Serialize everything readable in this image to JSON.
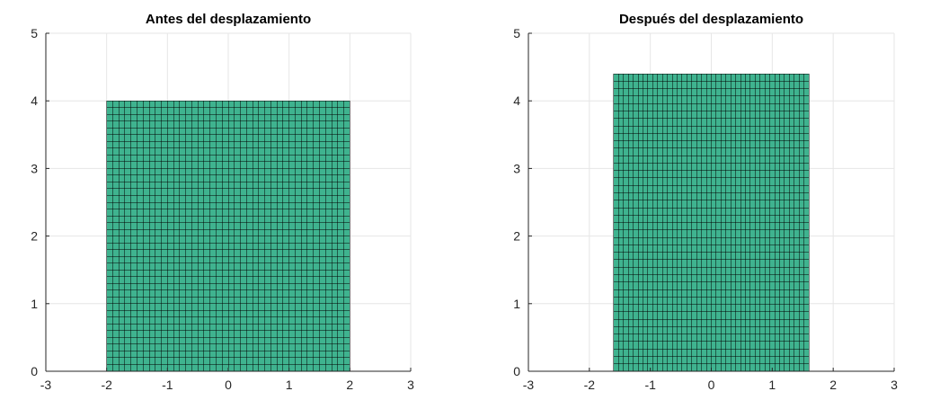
{
  "figure": {
    "background": "#ffffff",
    "axis_color": "#262626",
    "grid_color": "#e6e6e6"
  },
  "chart_data": [
    {
      "type": "mesh",
      "title": "Antes del desplazamiento",
      "xlabel": "",
      "ylabel": "",
      "xlim": [
        -3,
        3
      ],
      "ylim": [
        0,
        5
      ],
      "xticks": [
        -3,
        -2,
        -1,
        0,
        1,
        2,
        3
      ],
      "yticks": [
        0,
        1,
        2,
        3,
        4,
        5
      ],
      "xtick_labels": [
        "-3",
        "-2",
        "-1",
        "0",
        "1",
        "2",
        "3"
      ],
      "ytick_labels": [
        "0",
        "1",
        "2",
        "3",
        "4",
        "5"
      ],
      "grid": true,
      "box": false,
      "mesh": {
        "x_range": [
          -2,
          2
        ],
        "y_range": [
          0,
          4
        ],
        "nx": 40,
        "ny": 40,
        "face_color": "#3fb38f",
        "edge_color": "#000000"
      }
    },
    {
      "type": "mesh",
      "title": "Después del desplazamiento",
      "xlabel": "",
      "ylabel": "",
      "xlim": [
        -3,
        3
      ],
      "ylim": [
        0,
        5
      ],
      "xticks": [
        -3,
        -2,
        -1,
        0,
        1,
        2,
        3
      ],
      "yticks": [
        0,
        1,
        2,
        3,
        4,
        5
      ],
      "xtick_labels": [
        "-3",
        "-2",
        "-1",
        "0",
        "1",
        "2",
        "3"
      ],
      "ytick_labels": [
        "0",
        "1",
        "2",
        "3",
        "4",
        "5"
      ],
      "grid": true,
      "box": false,
      "mesh": {
        "x_range": [
          -1.6,
          1.6
        ],
        "y_range": [
          0,
          4.4
        ],
        "nx": 40,
        "ny": 40,
        "face_color": "#3fb38f",
        "edge_color": "#000000"
      }
    }
  ]
}
